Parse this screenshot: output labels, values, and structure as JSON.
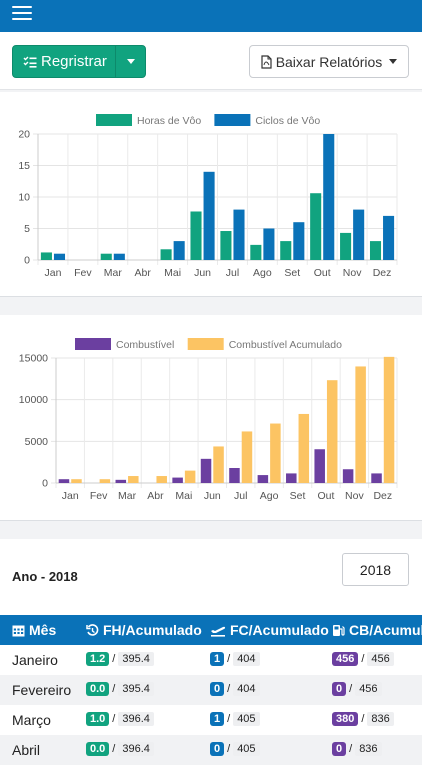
{
  "colors": {
    "primary": "#0a72b8",
    "green": "#11a37f",
    "blue": "#0a72b8",
    "purple": "#6b3fa0",
    "orange": "#fcc463"
  },
  "actions": {
    "register_label": "Regristrar",
    "reports_label": "Baixar Relatórios"
  },
  "chart_data": [
    {
      "type": "bar",
      "categories": [
        "Jan",
        "Fev",
        "Mar",
        "Abr",
        "Mai",
        "Jun",
        "Jul",
        "Ago",
        "Set",
        "Out",
        "Nov",
        "Dez"
      ],
      "series": [
        {
          "name": "Horas de Vôo",
          "color": "#11a37f",
          "values": [
            1.2,
            0,
            1,
            0,
            1.7,
            7.7,
            4.6,
            2.4,
            3,
            10.6,
            4.3,
            3
          ]
        },
        {
          "name": "Ciclos de Vôo",
          "color": "#0a72b8",
          "values": [
            1,
            0,
            1,
            0,
            3,
            14,
            8,
            5,
            6,
            20,
            8,
            7
          ]
        }
      ],
      "yticks": [
        0,
        5,
        10,
        15,
        20
      ],
      "ylim": [
        0,
        20
      ]
    },
    {
      "type": "bar",
      "categories": [
        "Jan",
        "Fev",
        "Mar",
        "Abr",
        "Mai",
        "Jun",
        "Jul",
        "Ago",
        "Set",
        "Out",
        "Nov",
        "Dez"
      ],
      "series": [
        {
          "name": "Combustível",
          "color": "#6b3fa0",
          "values": [
            456,
            0,
            380,
            0,
            650,
            2900,
            1800,
            950,
            1150,
            4050,
            1650,
            1150
          ]
        },
        {
          "name": "Combustível Acumulado",
          "color": "#fcc463",
          "values": [
            456,
            456,
            836,
            836,
            1486,
            4386,
            6186,
            7136,
            8286,
            12336,
            13986,
            15136
          ]
        }
      ],
      "yticks": [
        0,
        5000,
        10000,
        15000
      ],
      "ylim": [
        0,
        15000
      ]
    }
  ],
  "year": {
    "label": "Ano - 2018",
    "selected": "2018"
  },
  "table": {
    "headers": {
      "month": "Mês",
      "fh": "FH/Acumulado",
      "fc": "FC/Acumulado",
      "cb": "CB/Acumula"
    },
    "rows": [
      {
        "month": "Janeiro",
        "fh": "1.2",
        "fh_acc": "395.4",
        "fc": "1",
        "fc_acc": "404",
        "cb": "456",
        "cb_acc": "456"
      },
      {
        "month": "Fevereiro",
        "fh": "0.0",
        "fh_acc": "395.4",
        "fc": "0",
        "fc_acc": "404",
        "cb": "0",
        "cb_acc": "456"
      },
      {
        "month": "Março",
        "fh": "1.0",
        "fh_acc": "396.4",
        "fc": "1",
        "fc_acc": "405",
        "cb": "380",
        "cb_acc": "836"
      },
      {
        "month": "Abril",
        "fh": "0.0",
        "fh_acc": "396.4",
        "fc": "0",
        "fc_acc": "405",
        "cb": "0",
        "cb_acc": "836"
      }
    ]
  }
}
